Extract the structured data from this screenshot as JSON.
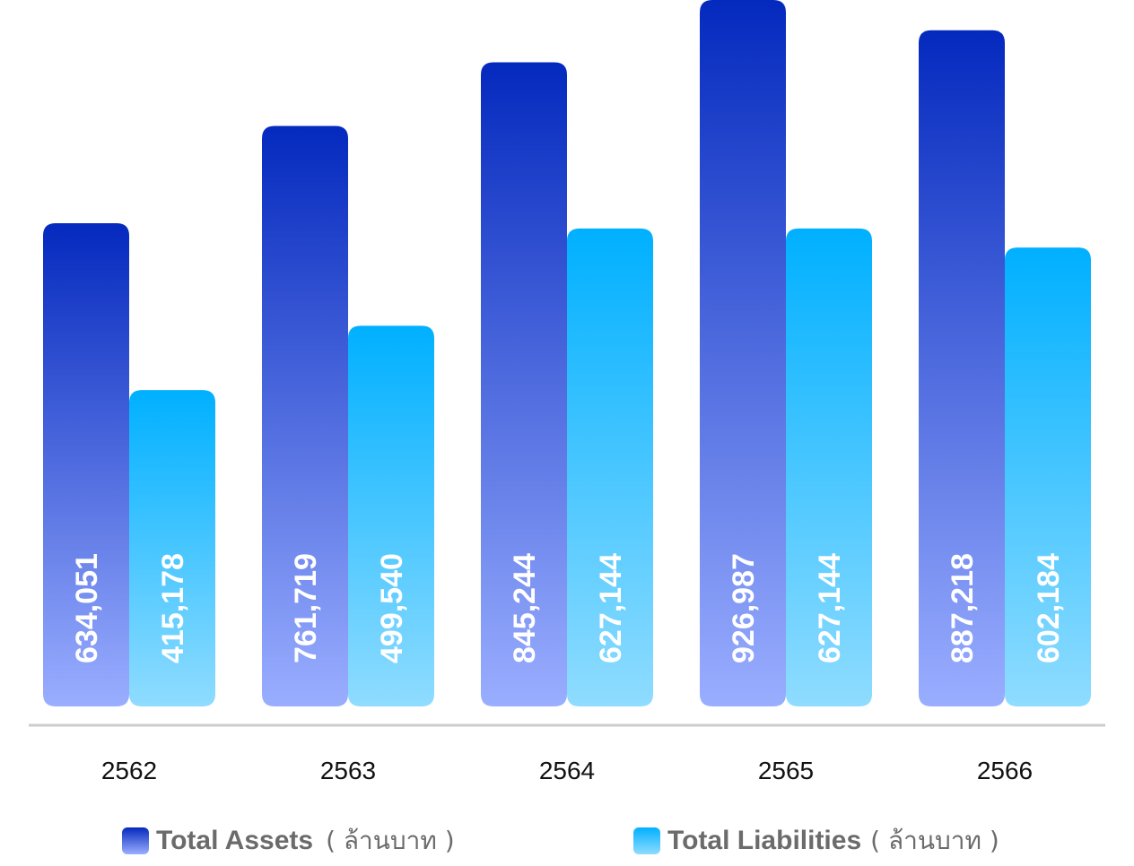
{
  "chart_data": {
    "type": "bar",
    "categories": [
      "2562",
      "2563",
      "2564",
      "2565",
      "2566"
    ],
    "series": [
      {
        "name": "Total Assets",
        "values": [
          634051,
          761719,
          845244,
          926987,
          887218
        ],
        "labels": [
          "634,051",
          "761,719",
          "845,244",
          "926,987",
          "887,218"
        ],
        "color_top": "#0429be",
        "color_bottom": "#9aaeff"
      },
      {
        "name": "Total Liabilities",
        "values": [
          415178,
          499540,
          627144,
          627144,
          602184
        ],
        "labels": [
          "415,178",
          "499,540",
          "627,144",
          "627,144",
          "602,184"
        ],
        "color_top": "#00b0ff",
        "color_bottom": "#8fdcff"
      }
    ],
    "unit": "( ล้านบาท )",
    "grid": false,
    "legend_position": "bottom"
  }
}
